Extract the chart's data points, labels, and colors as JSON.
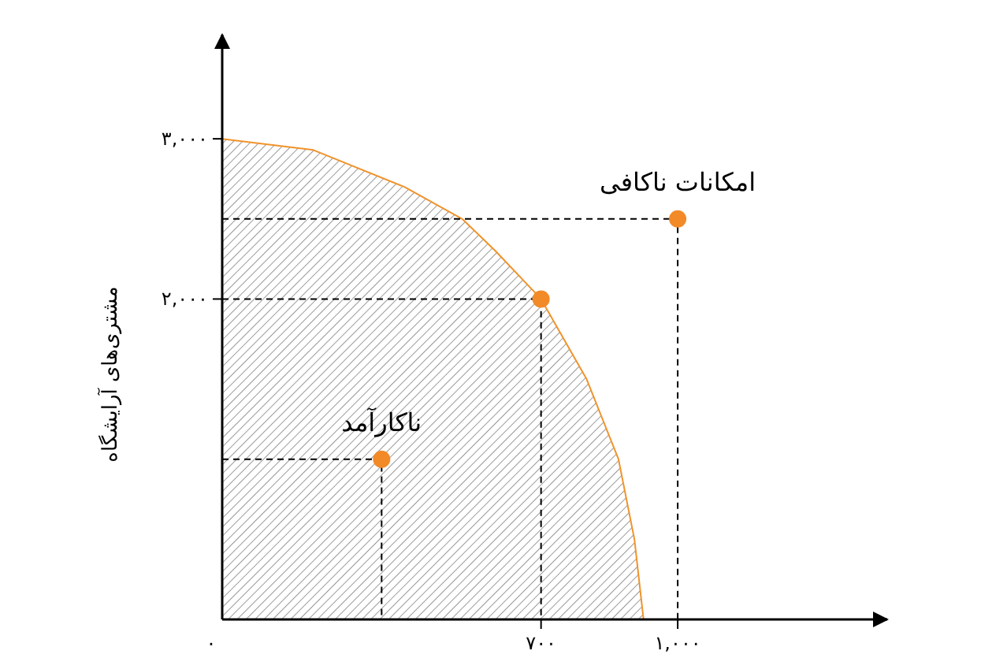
{
  "chart_data": {
    "type": "line",
    "ylabel": "مشتری‌های آرایشگاه",
    "xlim": [
      0,
      1460
    ],
    "ylim": [
      0,
      3650
    ],
    "xticks": [
      {
        "value": 0,
        "label": "۰"
      },
      {
        "value": 700,
        "label": "۷۰۰"
      },
      {
        "value": 1000,
        "label": "۱,۰۰۰"
      }
    ],
    "yticks": [
      {
        "value": 0,
        "label": null
      },
      {
        "value": 2000,
        "label": "۲,۰۰۰"
      },
      {
        "value": 3000,
        "label": "۳,۰۰۰"
      }
    ],
    "series": [
      {
        "type": "area",
        "color": "#f0932b",
        "x": [
          0,
          200,
          400,
          527,
          600,
          700,
          800,
          870,
          905,
          925
        ],
        "values": [
          3000,
          2930,
          2700,
          2500,
          2300,
          2000,
          1500,
          1000,
          500,
          0
        ]
      },
      {
        "type": "line",
        "line_style": "dashed",
        "color": "#000000",
        "x": [
          0,
          1000,
          1000
        ],
        "values": [
          2500,
          2500,
          0
        ]
      },
      {
        "type": "line",
        "line_style": "dashed",
        "color": "#000000",
        "x": [
          0,
          700,
          700
        ],
        "values": [
          2000,
          2000,
          0
        ]
      },
      {
        "type": "line",
        "line_style": "dashed",
        "color": "#000000",
        "x": [
          0,
          350,
          350
        ],
        "values": [
          1000,
          1000,
          0
        ]
      },
      {
        "type": "scatter",
        "marker": "circle",
        "color": "#f28a28",
        "x": [
          350,
          700,
          1000
        ],
        "values": [
          1000,
          2000,
          2500
        ]
      }
    ],
    "annotations": [
      {
        "text": "ناکارآمد",
        "x": 350,
        "y": 1000
      },
      {
        "text": "امکانات ناکافی",
        "x": 1000,
        "y": 2500
      }
    ]
  }
}
